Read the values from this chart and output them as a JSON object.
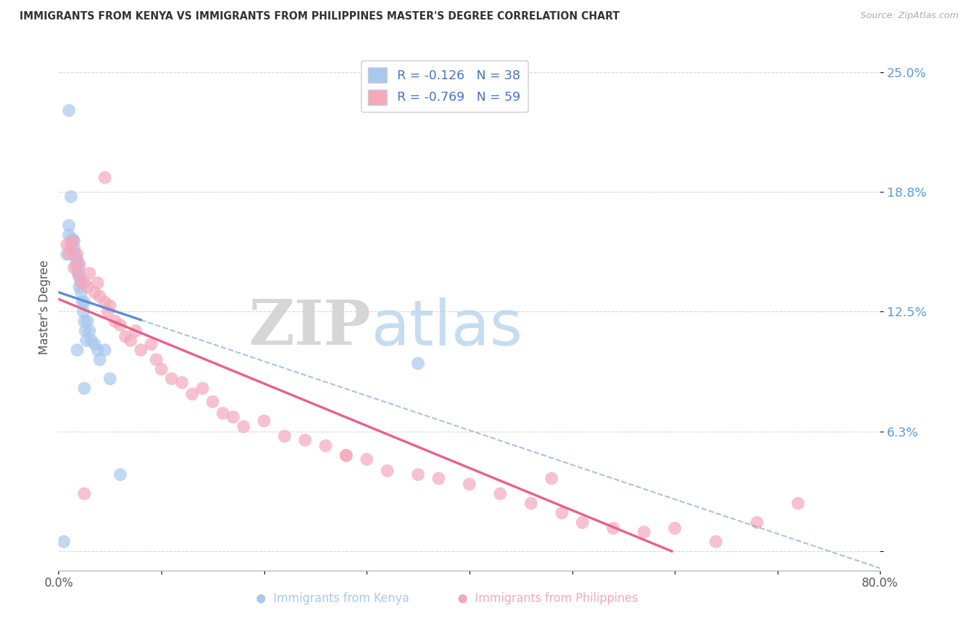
{
  "title": "IMMIGRANTS FROM KENYA VS IMMIGRANTS FROM PHILIPPINES MASTER'S DEGREE CORRELATION CHART",
  "source": "Source: ZipAtlas.com",
  "ylabel": "Master's Degree",
  "xlim": [
    0.0,
    0.8
  ],
  "ylim": [
    -0.01,
    0.265
  ],
  "ytick_vals": [
    0.0,
    0.0625,
    0.125,
    0.1875,
    0.25
  ],
  "ytick_labels": [
    "",
    "6.3%",
    "12.5%",
    "18.8%",
    "25.0%"
  ],
  "xtick_labels_left": "0.0%",
  "xtick_labels_right": "80.0%",
  "watermark_zip": "ZIP",
  "watermark_atlas": "atlas",
  "color_kenya": "#A8C8EE",
  "color_philippines": "#F4A8BC",
  "color_trend_kenya": "#5B8DD9",
  "color_trend_philippines": "#E8608A",
  "color_ytick": "#5B9BD5",
  "R_kenya": -0.126,
  "N_kenya": 38,
  "R_philippines": -0.769,
  "N_philippines": 59,
  "kenya_x": [
    0.005,
    0.008,
    0.01,
    0.01,
    0.012,
    0.013,
    0.015,
    0.015,
    0.016,
    0.017,
    0.018,
    0.018,
    0.019,
    0.02,
    0.02,
    0.02,
    0.022,
    0.022,
    0.023,
    0.024,
    0.025,
    0.025,
    0.026,
    0.027,
    0.028,
    0.03,
    0.032,
    0.035,
    0.038,
    0.04,
    0.045,
    0.05,
    0.06,
    0.012,
    0.018,
    0.025,
    0.35,
    0.01
  ],
  "kenya_y": [
    0.005,
    0.155,
    0.165,
    0.17,
    0.16,
    0.163,
    0.158,
    0.162,
    0.155,
    0.15,
    0.148,
    0.152,
    0.145,
    0.148,
    0.138,
    0.143,
    0.14,
    0.135,
    0.13,
    0.125,
    0.13,
    0.12,
    0.115,
    0.11,
    0.12,
    0.115,
    0.11,
    0.108,
    0.105,
    0.1,
    0.105,
    0.09,
    0.04,
    0.185,
    0.105,
    0.085,
    0.098,
    0.23
  ],
  "philippines_x": [
    0.008,
    0.01,
    0.012,
    0.014,
    0.015,
    0.018,
    0.019,
    0.02,
    0.022,
    0.025,
    0.028,
    0.03,
    0.035,
    0.038,
    0.04,
    0.045,
    0.048,
    0.05,
    0.055,
    0.06,
    0.065,
    0.07,
    0.075,
    0.08,
    0.09,
    0.095,
    0.1,
    0.11,
    0.12,
    0.13,
    0.14,
    0.15,
    0.16,
    0.17,
    0.18,
    0.2,
    0.22,
    0.24,
    0.26,
    0.28,
    0.3,
    0.32,
    0.35,
    0.37,
    0.4,
    0.43,
    0.46,
    0.49,
    0.51,
    0.54,
    0.57,
    0.6,
    0.64,
    0.68,
    0.72,
    0.48,
    0.28,
    0.045,
    0.025
  ],
  "philippines_y": [
    0.16,
    0.155,
    0.158,
    0.162,
    0.148,
    0.155,
    0.145,
    0.15,
    0.14,
    0.14,
    0.138,
    0.145,
    0.135,
    0.14,
    0.133,
    0.13,
    0.125,
    0.128,
    0.12,
    0.118,
    0.112,
    0.11,
    0.115,
    0.105,
    0.108,
    0.1,
    0.095,
    0.09,
    0.088,
    0.082,
    0.085,
    0.078,
    0.072,
    0.07,
    0.065,
    0.068,
    0.06,
    0.058,
    0.055,
    0.05,
    0.048,
    0.042,
    0.04,
    0.038,
    0.035,
    0.03,
    0.025,
    0.02,
    0.015,
    0.012,
    0.01,
    0.012,
    0.005,
    0.015,
    0.025,
    0.038,
    0.05,
    0.195,
    0.03
  ]
}
